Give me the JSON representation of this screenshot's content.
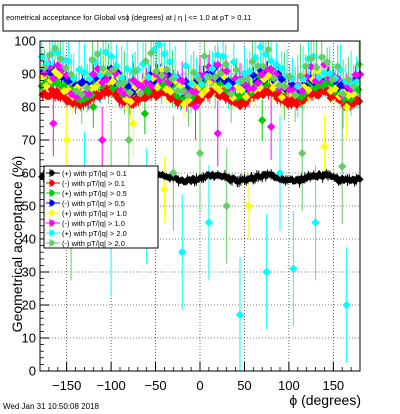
{
  "chart_data": {
    "type": "scatter",
    "title": "eometrical acceptance for Global vsϕ (degrees) at | η | <= 1.0 at pT > 0.11",
    "xlabel": "ϕ (degrees)",
    "ylabel": "Geometrical acceptance (%)",
    "xlim": [
      -180,
      180
    ],
    "ylim": [
      0,
      100
    ],
    "xticks": [
      -150,
      -100,
      -50,
      0,
      50,
      100,
      150
    ],
    "yticks": [
      0,
      10,
      20,
      30,
      40,
      50,
      60,
      70,
      80,
      90,
      100
    ],
    "grid": true,
    "legend_position": "left-middle",
    "series": [
      {
        "name": "(+) with pT/|q| > 0.1",
        "color": "#000000",
        "marker": "diamond",
        "x_start": -178,
        "x_step": 2,
        "base": 58.5,
        "amp": 0.8,
        "noise": 0.6,
        "err": 1.2,
        "outliers": []
      },
      {
        "name": "(-) with pT/|q| > 0.1",
        "color": "#ff0000",
        "marker": "diamond",
        "x_start": -177,
        "x_step": 2,
        "base": 83,
        "amp": 1.5,
        "noise": 1.2,
        "err": 1.5,
        "outliers": []
      },
      {
        "name": "(+) with pT/|q| > 0.5",
        "color": "#00cc00",
        "marker": "diamond",
        "x_start": -178,
        "x_step": 4,
        "base": 86,
        "amp": 2.0,
        "noise": 2.0,
        "err": 2.5,
        "outliers": [
          [
            -62,
            78
          ],
          [
            70,
            76
          ],
          [
            -120,
            80
          ]
        ]
      },
      {
        "name": "(-) with pT/|q| > 0.5",
        "color": "#0000ff",
        "marker": "diamond",
        "x_start": -176,
        "x_step": 4,
        "base": 88,
        "amp": 2.0,
        "noise": 2.0,
        "err": 2.5,
        "outliers": []
      },
      {
        "name": "(+) with pT/|q| > 1.0",
        "color": "#ffff00",
        "marker": "diamond",
        "x_start": -178,
        "x_step": 5,
        "base": 86,
        "amp": 2.5,
        "noise": 3.0,
        "err": 4,
        "outliers": [
          [
            -150,
            70
          ],
          [
            -40,
            55
          ],
          [
            55,
            50
          ],
          [
            -75,
            75
          ],
          [
            140,
            68
          ],
          [
            165,
            80
          ]
        ]
      },
      {
        "name": "(-) with pT/|q| > 1.0",
        "color": "#ff00ff",
        "marker": "diamond",
        "x_start": -175,
        "x_step": 5,
        "base": 88,
        "amp": 2.5,
        "noise": 3.0,
        "err": 4,
        "outliers": [
          [
            -165,
            75
          ],
          [
            -110,
            70
          ],
          [
            20,
            72
          ],
          [
            -5,
            80
          ],
          [
            80,
            74
          ]
        ]
      },
      {
        "name": "(+) with pT/|q| > 2.0",
        "color": "#00ffff",
        "marker": "diamond",
        "x_start": -178,
        "x_step": 6,
        "base": 91,
        "amp": 3.0,
        "noise": 5.0,
        "err": 7,
        "outliers": [
          [
            45,
            17
          ],
          [
            -20,
            36
          ],
          [
            75,
            30
          ],
          [
            105,
            31
          ],
          [
            165,
            20
          ],
          [
            10,
            45
          ],
          [
            -100,
            40
          ],
          [
            -130,
            55
          ],
          [
            130,
            45
          ],
          [
            -60,
            50
          ],
          [
            90,
            60
          ]
        ]
      },
      {
        "name": "(-) with pT/|q| > 2.0",
        "color": "#66cc66",
        "marker": "diamond",
        "x_start": -175,
        "x_step": 6,
        "base": 90,
        "amp": 3.0,
        "noise": 5.0,
        "err": 7,
        "outliers": [
          [
            -145,
            45
          ],
          [
            -30,
            60
          ],
          [
            30,
            50
          ],
          [
            -100,
            58
          ],
          [
            160,
            62
          ],
          [
            115,
            66
          ],
          [
            -80,
            70
          ],
          [
            0,
            66
          ]
        ]
      }
    ]
  },
  "footer": {
    "timestamp": "Wed Jan 31 10:50:08 2018"
  }
}
